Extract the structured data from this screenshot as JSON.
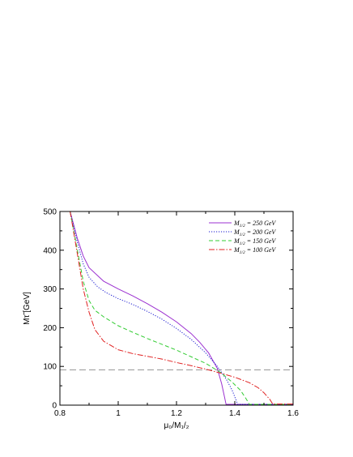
{
  "chart_data": {
    "type": "line",
    "title": "",
    "xlabel": "μ₀/M₁/₂",
    "ylabel": "Mτ̃ [GeV]",
    "xlim": [
      0.8,
      1.6
    ],
    "ylim": [
      0,
      500
    ],
    "xticks": [
      0.8,
      1,
      1.2,
      1.4,
      1.6
    ],
    "xtick_labels": [
      "0.8",
      "1",
      "1.2",
      "1.4",
      "1.6"
    ],
    "yticks": [
      0,
      100,
      200,
      300,
      400,
      500
    ],
    "ytick_labels": [
      "0",
      "100",
      "200",
      "300",
      "400",
      "500"
    ],
    "grid": false,
    "legend_position": "top-right",
    "reference_line": {
      "y": 91,
      "style": "dashed",
      "color": "#999999"
    },
    "series": [
      {
        "name": "M1/2 = 250 GeV",
        "legend_main": "M",
        "legend_sub": "1/2",
        "legend_rest": " = 250 GeV",
        "color": "#9b30d0",
        "dash": "",
        "x": [
          0.835,
          0.86,
          0.88,
          0.9,
          0.95,
          1.0,
          1.05,
          1.1,
          1.15,
          1.2,
          1.25,
          1.28,
          1.31,
          1.34,
          1.355,
          1.365,
          1.37,
          1.6
        ],
        "y": [
          500,
          430,
          385,
          355,
          320,
          300,
          282,
          262,
          240,
          215,
          185,
          162,
          135,
          95,
          55,
          20,
          2,
          2
        ]
      },
      {
        "name": "M1/2 = 200 GeV",
        "legend_main": "M",
        "legend_sub": "1/2",
        "legend_rest": " = 200 GeV",
        "color": "#1a1ad0",
        "dash": "1.2,1.8",
        "x": [
          0.835,
          0.86,
          0.88,
          0.9,
          0.93,
          0.96,
          1.0,
          1.05,
          1.1,
          1.15,
          1.2,
          1.25,
          1.3,
          1.34,
          1.37,
          1.39,
          1.405,
          1.41,
          1.6
        ],
        "y": [
          500,
          420,
          365,
          330,
          305,
          290,
          275,
          260,
          242,
          222,
          198,
          170,
          135,
          100,
          68,
          40,
          12,
          2,
          2
        ]
      },
      {
        "name": "M1/2 = 150 GeV",
        "legend_main": "M",
        "legend_sub": "1/2",
        "legend_rest": " = 150 GeV",
        "color": "#33cc33",
        "dash": "5,3",
        "x": [
          0.835,
          0.86,
          0.88,
          0.9,
          0.92,
          0.95,
          1.0,
          1.05,
          1.1,
          1.15,
          1.2,
          1.25,
          1.3,
          1.35,
          1.39,
          1.42,
          1.44,
          1.45,
          1.6
        ],
        "y": [
          500,
          400,
          320,
          270,
          245,
          228,
          205,
          188,
          172,
          157,
          142,
          125,
          108,
          85,
          60,
          38,
          15,
          2,
          2
        ]
      },
      {
        "name": "M1/2 = 100 GeV",
        "legend_main": "M",
        "legend_sub": "1/2",
        "legend_rest": " = 100 GeV",
        "color": "#e02020",
        "dash": "7,2,1.5,2",
        "x": [
          0.835,
          0.86,
          0.88,
          0.9,
          0.92,
          0.95,
          1.0,
          1.05,
          1.1,
          1.15,
          1.2,
          1.25,
          1.3,
          1.35,
          1.4,
          1.45,
          1.48,
          1.5,
          1.52,
          1.53,
          1.6
        ],
        "y": [
          500,
          390,
          300,
          240,
          195,
          165,
          143,
          133,
          126,
          119,
          110,
          102,
          93,
          83,
          72,
          58,
          45,
          32,
          15,
          3,
          3
        ]
      }
    ]
  }
}
